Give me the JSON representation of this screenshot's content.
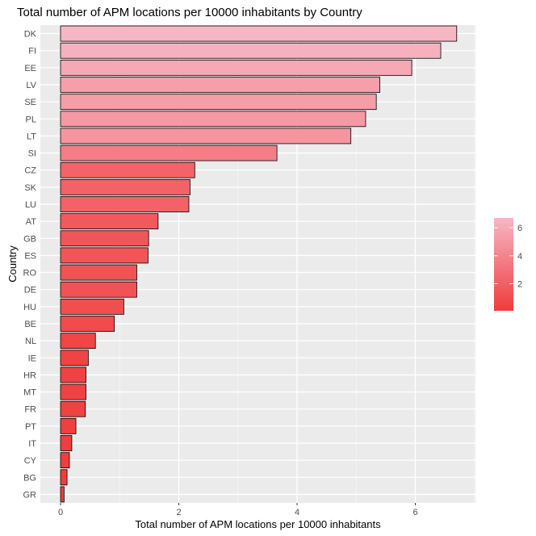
{
  "chart_data": {
    "type": "bar",
    "orientation": "horizontal",
    "title": "Total number of APM locations per 10000 inhabitants by Country",
    "xlabel": "Total number of APM locations per 10000 inhabitants",
    "ylabel": "Country",
    "xlim": [
      0,
      7.0
    ],
    "x_ticks": [
      0,
      2,
      4,
      6
    ],
    "grid": true,
    "legend_placement": "right",
    "categories": [
      "DK",
      "FI",
      "EE",
      "LV",
      "SE",
      "PL",
      "LT",
      "SI",
      "CZ",
      "SK",
      "LU",
      "AT",
      "GB",
      "ES",
      "RO",
      "DE",
      "HU",
      "BE",
      "NL",
      "IE",
      "HR",
      "MT",
      "FR",
      "PT",
      "IT",
      "CY",
      "BG",
      "GR"
    ],
    "values": [
      6.7,
      6.43,
      5.94,
      5.4,
      5.34,
      5.16,
      4.91,
      3.66,
      2.27,
      2.19,
      2.17,
      1.65,
      1.49,
      1.48,
      1.29,
      1.29,
      1.07,
      0.91,
      0.59,
      0.47,
      0.43,
      0.43,
      0.42,
      0.26,
      0.19,
      0.15,
      0.11,
      0.06
    ],
    "legend": {
      "ticks": [
        "2",
        "4",
        "6"
      ],
      "tick_values": [
        2,
        4,
        6
      ],
      "range": [
        0.06,
        6.7
      ],
      "low_color": "#f03b3b",
      "high_color": "#f7b6c4"
    },
    "colors": {
      "panel_background": "#ebebeb",
      "grid_major": "#ffffff",
      "grid_minor": "#f5f5f5",
      "bar_outline": "#000000",
      "tick_text": "#4d4d4d"
    }
  }
}
